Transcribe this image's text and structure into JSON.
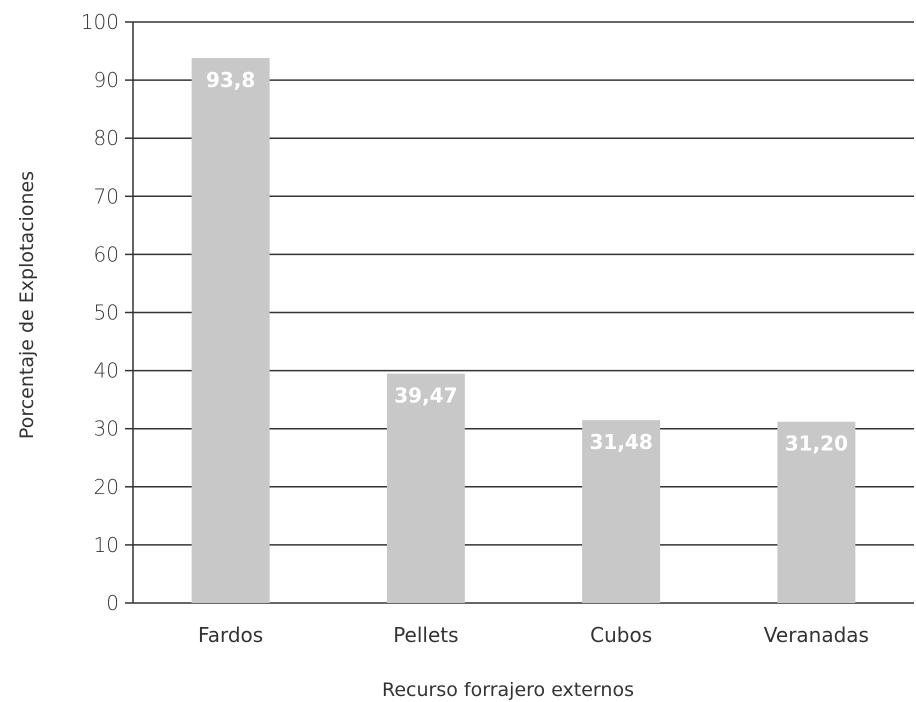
{
  "chart_data": {
    "type": "bar",
    "categories": [
      "Fardos",
      "Pellets",
      "Cubos",
      "Veranadas"
    ],
    "values": [
      93.8,
      39.47,
      31.48,
      31.2
    ],
    "data_labels": [
      "93,8",
      "39,47",
      "31,48",
      "31,20"
    ],
    "xlabel": "Recurso forrajero externos",
    "ylabel": "Porcentaje de Explotaciones",
    "ylim": [
      0,
      100
    ],
    "yticks": [
      0,
      10,
      20,
      30,
      40,
      50,
      60,
      70,
      80,
      90,
      100
    ],
    "grid": true,
    "legend": "none",
    "colors": {
      "bar": "#c8c8c8",
      "grid": "#333333",
      "data_label": "#ffffff"
    }
  }
}
